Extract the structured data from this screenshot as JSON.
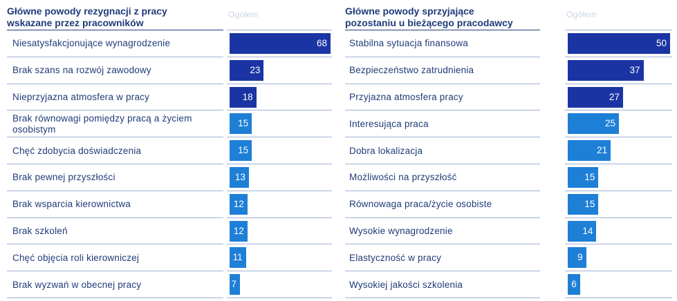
{
  "colors": {
    "dark": "#1a35a3",
    "mid": "#1565c4",
    "light": "#1e7fd6",
    "text": "#1f3b78"
  },
  "left": {
    "title_lines": [
      "Główne powody rezygnacji z pracy",
      "wskazane przez pracowników"
    ],
    "column_header": "Ogółem",
    "max": 68,
    "chart_data": {
      "type": "bar",
      "categories": [
        "Niesatysfakcjonujące wynagrodzenie",
        "Brak szans na rozwój zawodowy",
        "Nieprzyjazna atmosfera w pracy",
        "Brak równowagi pomiędzy pracą a życiem osobistym",
        "Chęć zdobycia doświadczenia",
        "Brak pewnej przyszłości",
        "Brak wsparcia kierownictwa",
        "Brak szkoleń",
        "Chęć objęcia roli kierowniczej",
        "Brak wyzwań w obecnej pracy"
      ],
      "values": [
        68,
        23,
        18,
        15,
        15,
        13,
        12,
        12,
        11,
        7
      ],
      "bar_colors": [
        "dark",
        "dark",
        "dark",
        "light",
        "light",
        "light",
        "light",
        "light",
        "light",
        "light"
      ]
    }
  },
  "right": {
    "title_lines": [
      "Główne powody sprzyjające",
      "pozostaniu u bieżącego pracodawcy"
    ],
    "column_header": "Ogółem",
    "max": 50,
    "chart_data": {
      "type": "bar",
      "categories": [
        "Stabilna sytuacja finansowa",
        "Bezpieczeństwo zatrudnienia",
        "Przyjazna atmosfera pracy",
        "Interesująca praca",
        "Dobra lokalizacja",
        "Możliwości na przyszłość",
        "Równowaga praca/życie osobiste",
        "Wysokie wynagrodzenie",
        "Elastyczność w pracy",
        "Wysokiej jakości szkolenia"
      ],
      "values": [
        50,
        37,
        27,
        25,
        21,
        15,
        15,
        14,
        9,
        6
      ],
      "bar_colors": [
        "dark",
        "dark",
        "dark",
        "light",
        "light",
        "light",
        "light",
        "light",
        "light",
        "light"
      ]
    }
  }
}
